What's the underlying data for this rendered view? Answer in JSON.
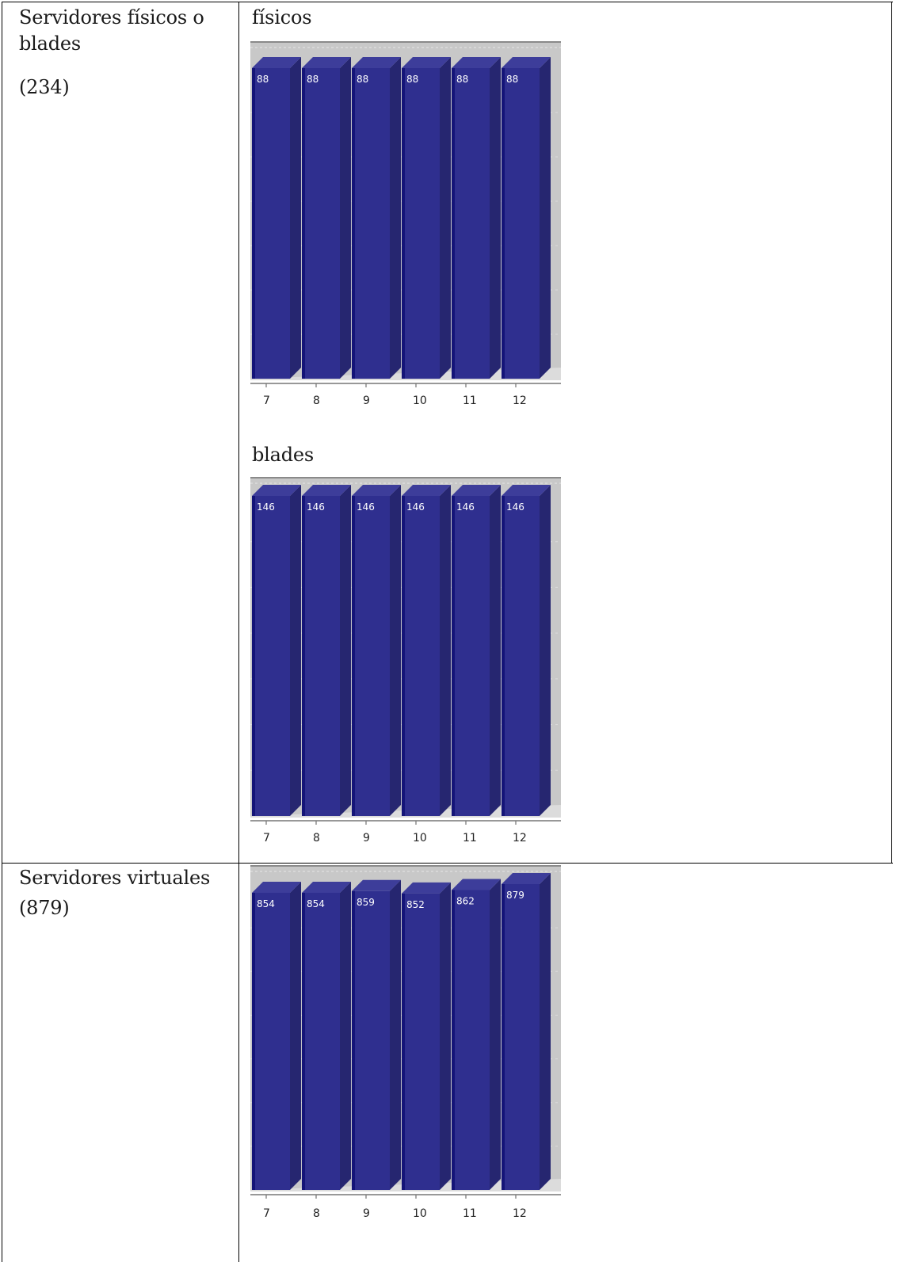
{
  "rows": [
    {
      "label": "Servidores físicos o blades",
      "count": "(234)",
      "charts": [
        {
          "subtitle": "físicos"
        },
        {
          "subtitle": "blades"
        }
      ]
    },
    {
      "label": "Servidores virtuales",
      "count": "(879)",
      "charts": [
        {
          "subtitle": ""
        }
      ]
    }
  ],
  "chart_data": [
    {
      "type": "bar",
      "title": "físicos",
      "categories": [
        "7",
        "8",
        "9",
        "10",
        "11",
        "12"
      ],
      "values": [
        88,
        88,
        88,
        88,
        88,
        88
      ],
      "data_labels": [
        "88",
        "88",
        "88",
        "88",
        "88",
        "88"
      ],
      "ylim": [
        0,
        88
      ],
      "grid": true,
      "color": "#2e2e8f"
    },
    {
      "type": "bar",
      "title": "blades",
      "categories": [
        "7",
        "8",
        "9",
        "10",
        "11",
        "12"
      ],
      "values": [
        146,
        146,
        146,
        146,
        146,
        146
      ],
      "data_labels": [
        "146",
        "146",
        "146",
        "146",
        "146",
        "146"
      ],
      "ylim": [
        0,
        146
      ],
      "grid": true,
      "color": "#2e2e8f"
    },
    {
      "type": "bar",
      "title": "",
      "categories": [
        "7",
        "8",
        "9",
        "10",
        "11",
        "12"
      ],
      "values": [
        854,
        854,
        859,
        852,
        862,
        879
      ],
      "data_labels": [
        "854",
        "854",
        "859",
        "852",
        "862",
        "879"
      ],
      "ylim": [
        0,
        879
      ],
      "grid": true,
      "color": "#2e2e8f"
    }
  ]
}
